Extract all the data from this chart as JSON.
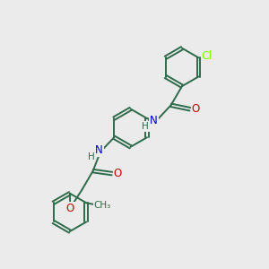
{
  "bg_color": "#ebebeb",
  "bond_color": "#2d6b4a",
  "atom_colors": {
    "N": "#0000cc",
    "O": "#cc0000",
    "Cl": "#7fff00",
    "C": "#2d6b4a",
    "H": "#2d6b4a"
  },
  "bond_width": 1.4,
  "dbo": 0.06,
  "ring_r": 0.72,
  "fs": 8.5
}
